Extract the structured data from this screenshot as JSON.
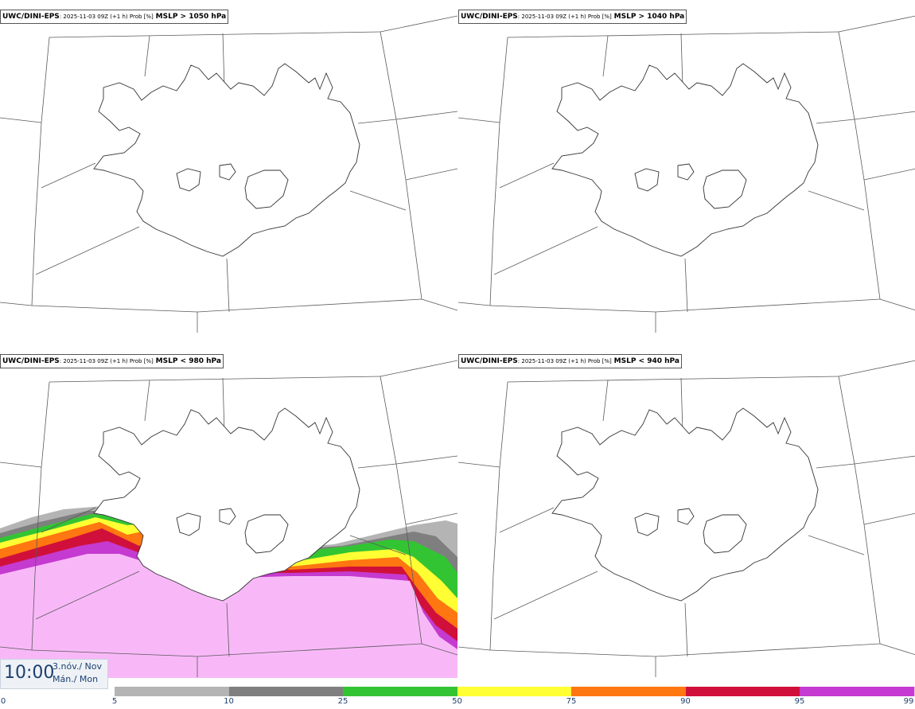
{
  "panels": [
    {
      "id": "p1",
      "model": "UWC/DINI-EPS",
      "meta": ": 2025-11-03 09Z (+1 h) Prob [%]",
      "threshold": "MSLP > 1050 hPa"
    },
    {
      "id": "p2",
      "model": "UWC/DINI-EPS",
      "meta": ": 2025-11-03 09Z (+1 h) Prob [%]",
      "threshold": "MSLP > 1040 hPa"
    },
    {
      "id": "p3",
      "model": "UWC/DINI-EPS",
      "meta": ": 2025-11-03 09Z (+1 h) Prob [%]",
      "threshold": "MSLP < 980 hPa"
    },
    {
      "id": "p4",
      "model": "UWC/DINI-EPS",
      "meta": ": 2025-11-03 09Z (+1 h) Prob [%]",
      "threshold": "MSLP < 940 hPa"
    }
  ],
  "time": {
    "clock": "10:00",
    "date_line": "3.nóv./ Nov",
    "day_line": "Mán./ Mon"
  },
  "legend": {
    "ticks": [
      "0",
      "5",
      "10",
      "25",
      "50",
      "75",
      "90",
      "95",
      "99"
    ],
    "colors": [
      "#b4b4b4",
      "#7f7f7f",
      "#33c433",
      "#ffff33",
      "#ff7711",
      "#d0103a",
      "#c53ad0",
      "#f8b8f8"
    ]
  }
}
